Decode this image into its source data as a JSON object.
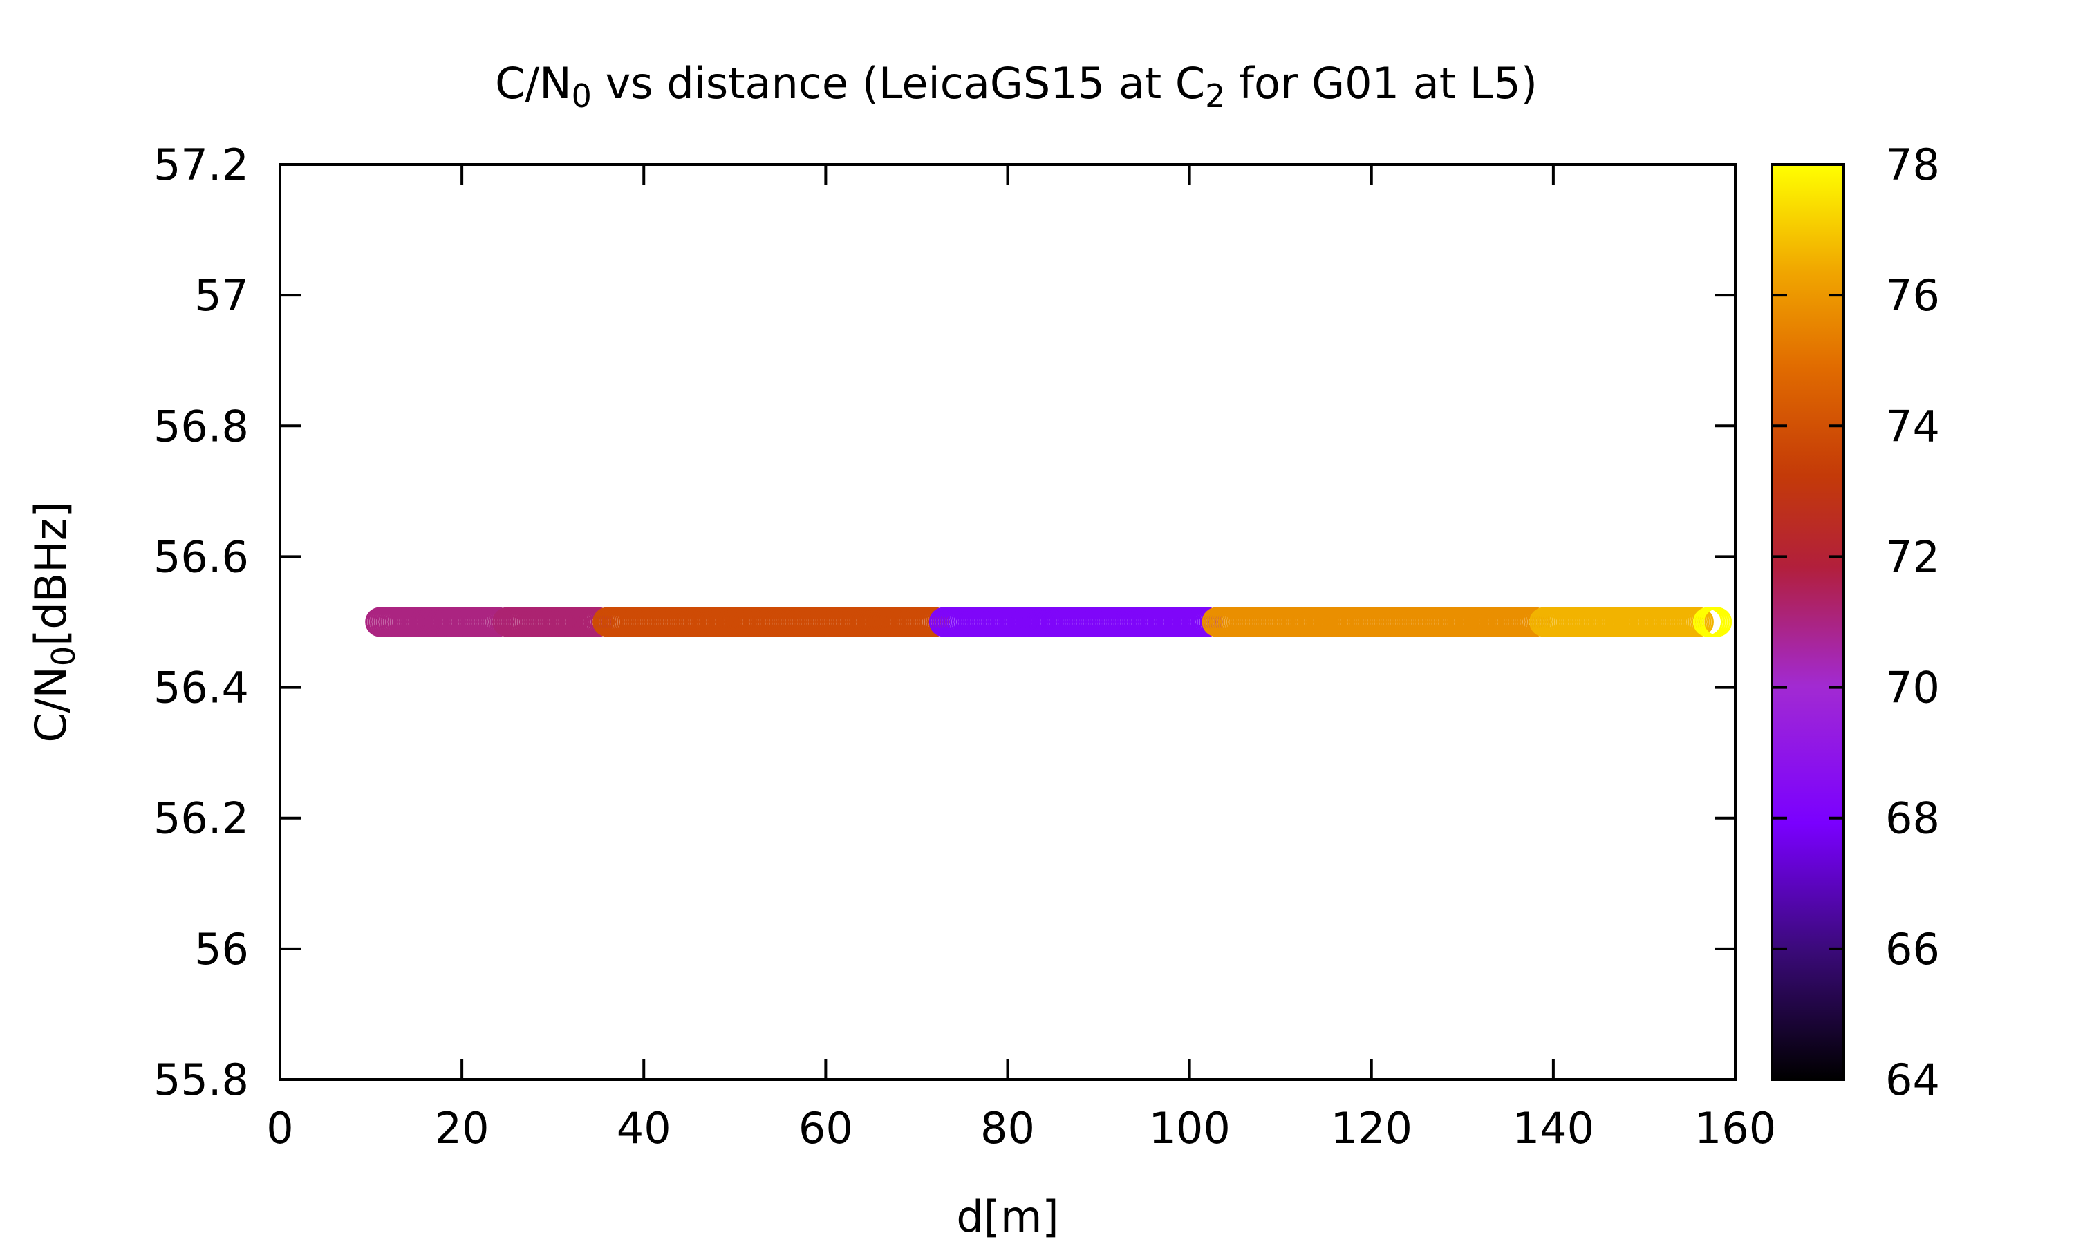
{
  "chart_data": {
    "type": "scatter",
    "title": "C/N₀ vs distance (LeicaGS15 at C₂ for G01 at L5)",
    "title_parts": [
      {
        "text": "C/N",
        "sub": false
      },
      {
        "text": "0",
        "sub": true
      },
      {
        "text": " vs distance (LeicaGS15 at C",
        "sub": false
      },
      {
        "text": "2",
        "sub": true
      },
      {
        "text": " for G01 at L5)",
        "sub": false
      }
    ],
    "xlabel": "d[m]",
    "ylabel_parts": [
      {
        "text": "C/N",
        "sub": false
      },
      {
        "text": "0",
        "sub": true
      },
      {
        "text": "[dBHz]",
        "sub": false
      }
    ],
    "xlim": [
      0,
      160
    ],
    "ylim": [
      55.8,
      57.2
    ],
    "x_ticks": [
      "0",
      "20",
      "40",
      "60",
      "80",
      "100",
      "120",
      "140",
      "160"
    ],
    "y_ticks": [
      "55.8",
      "56",
      "56.2",
      "56.4",
      "56.6",
      "56.8",
      "57",
      "57.2"
    ],
    "colorbar": {
      "range": [
        64,
        78
      ],
      "ticks": [
        "64",
        "66",
        "68",
        "70",
        "72",
        "74",
        "76",
        "78"
      ],
      "palette": "gnuplot-pm3d black-blue-purple-red-orange-yellow"
    },
    "marker": "open-circle",
    "grid": false,
    "series": [
      {
        "segments": [
          {
            "x_range": [
              11,
              24
            ],
            "y": 56.5,
            "color_value": 71.0
          },
          {
            "x_range": [
              25,
              35
            ],
            "y": 56.5,
            "color_value": 71.2
          },
          {
            "x_range": [
              36,
              72
            ],
            "y": 56.5,
            "color_value": 73.8
          },
          {
            "x_range": [
              73,
              102
            ],
            "y": 56.5,
            "color_value": 68.2
          },
          {
            "x_range": [
              103,
              138
            ],
            "y": 56.5,
            "color_value": 75.8
          },
          {
            "x_range": [
              139,
              156
            ],
            "y": 56.5,
            "color_value": 76.6
          },
          {
            "x_range": [
              157,
              158
            ],
            "y": 56.5,
            "color_value": 78.0
          }
        ]
      }
    ]
  }
}
